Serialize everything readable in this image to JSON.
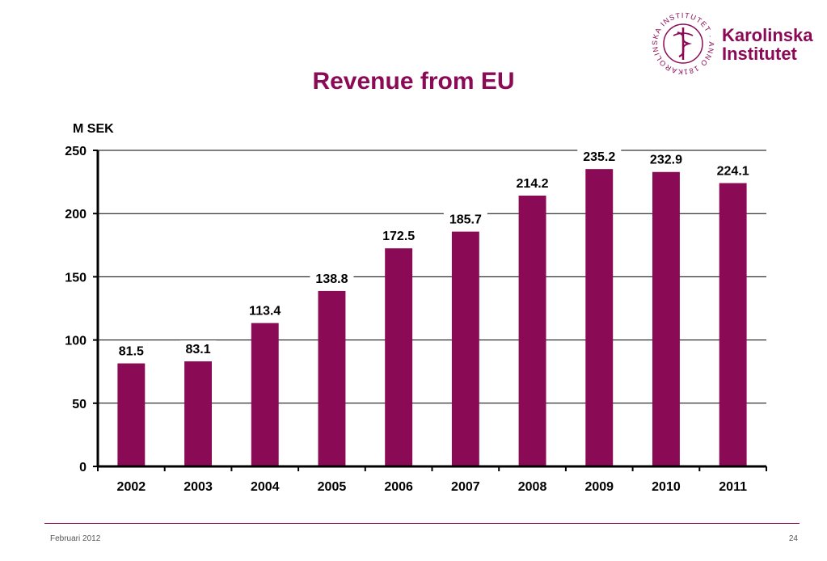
{
  "brand": {
    "name_line1": "Karolinska",
    "name_line2": "Institutet",
    "seal_text": "KAROLINSKA INSTITUTET · ANNO 1810",
    "color": "#8B0A56"
  },
  "footer": {
    "left": "Februari 2012",
    "right": "24"
  },
  "chart_data": {
    "type": "bar",
    "title": "Revenue from EU",
    "ylabel": "M SEK",
    "xlabel": "",
    "categories": [
      "2002",
      "2003",
      "2004",
      "2005",
      "2006",
      "2007",
      "2008",
      "2009",
      "2010",
      "2011"
    ],
    "values": [
      81.5,
      83.1,
      113.4,
      138.8,
      172.5,
      185.7,
      214.2,
      235.2,
      232.9,
      224.1
    ],
    "value_labels": [
      "81.5",
      "83.1",
      "113.4",
      "138.8",
      "172.5",
      "185.7",
      "214.2",
      "235.2",
      "232.9",
      "224.1"
    ],
    "ylim": [
      0,
      250
    ],
    "yticks": [
      0,
      50,
      100,
      150,
      200,
      250
    ],
    "grid": true,
    "bar_color": "#8B0A56"
  }
}
